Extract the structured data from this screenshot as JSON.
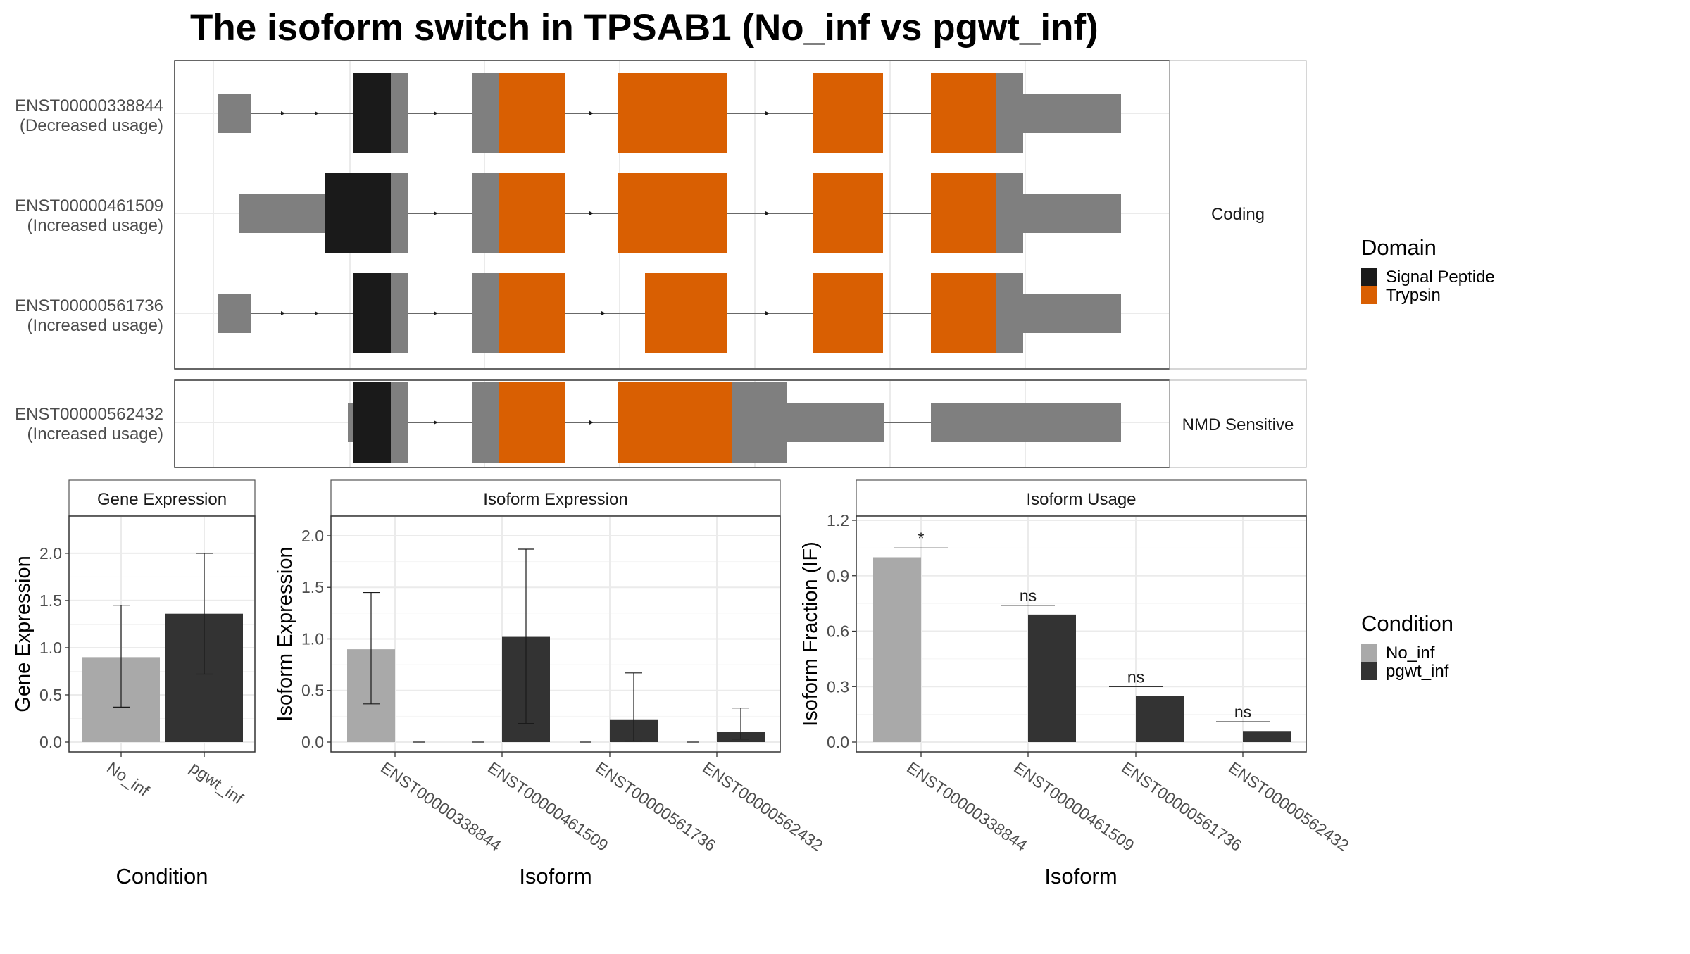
{
  "title": "The isoform switch in TPSAB1 (No_inf vs pgwt_inf)",
  "colors": {
    "signal_peptide": "#1a1a1a",
    "trypsin": "#d95f02",
    "utr": "#7f7f7f",
    "no_inf": "#a9a9a9",
    "pgwt_inf": "#333333"
  },
  "transcripts": {
    "facets": [
      "Coding",
      "NMD Sensitive"
    ],
    "items": [
      {
        "id": "ENST00000338844",
        "usage": "(Decreased usage)"
      },
      {
        "id": "ENST00000461509",
        "usage": "(Increased usage)"
      },
      {
        "id": "ENST00000561736",
        "usage": "(Increased usage)"
      },
      {
        "id": "ENST00000562432",
        "usage": "(Increased usage)"
      }
    ]
  },
  "legend_domain": {
    "title": "Domain",
    "items": [
      "Signal Peptide",
      "Trypsin"
    ]
  },
  "legend_condition": {
    "title": "Condition",
    "items": [
      "No_inf",
      "pgwt_inf"
    ]
  },
  "chart_data": [
    {
      "type": "bar",
      "title": "Gene Expression",
      "xlabel": "Condition",
      "ylabel": "Gene Expression",
      "ylim": [
        0,
        2.35
      ],
      "yticks": [
        "0.0",
        "0.5",
        "1.0",
        "1.5",
        "2.0"
      ],
      "categories": [
        "No_inf",
        "pgwt_inf"
      ],
      "values": [
        0.9,
        1.36
      ],
      "error_low": [
        0.37,
        0.72
      ],
      "error_high": [
        1.45,
        2.0
      ]
    },
    {
      "type": "bar",
      "title": "Isoform Expression",
      "xlabel": "Isoform",
      "ylabel": "Isoform Expression",
      "ylim": [
        0,
        2.15
      ],
      "yticks": [
        "0.0",
        "0.5",
        "1.0",
        "1.5",
        "2.0"
      ],
      "categories": [
        "ENST00000338844",
        "ENST00000461509",
        "ENST00000561736",
        "ENST00000562432"
      ],
      "series": [
        {
          "name": "No_inf",
          "values": [
            0.9,
            0.0,
            0.0,
            0.0
          ],
          "error_low": [
            0.37,
            0.0,
            0.0,
            0.0
          ],
          "error_high": [
            1.45,
            0.0,
            0.0,
            0.0
          ]
        },
        {
          "name": "pgwt_inf",
          "values": [
            0.0,
            1.02,
            0.22,
            0.1
          ],
          "error_low": [
            0.0,
            0.18,
            0.01,
            0.03
          ],
          "error_high": [
            0.0,
            1.87,
            0.67,
            0.33
          ]
        }
      ]
    },
    {
      "type": "bar",
      "title": "Isoform Usage",
      "xlabel": "Isoform",
      "ylabel": "Isoform Fraction (IF)",
      "ylim": [
        0,
        1.2
      ],
      "yticks": [
        "0.0",
        "0.3",
        "0.6",
        "0.9",
        "1.2"
      ],
      "categories": [
        "ENST00000338844",
        "ENST00000461509",
        "ENST00000561736",
        "ENST00000562432"
      ],
      "series": [
        {
          "name": "No_inf",
          "values": [
            1.0,
            0.0,
            0.0,
            0.0
          ]
        },
        {
          "name": "pgwt_inf",
          "values": [
            0.0,
            0.69,
            0.25,
            0.06
          ]
        }
      ],
      "significance": [
        "*",
        "ns",
        "ns",
        "ns"
      ],
      "significance_y": [
        1.05,
        0.74,
        0.3,
        0.11
      ]
    }
  ]
}
